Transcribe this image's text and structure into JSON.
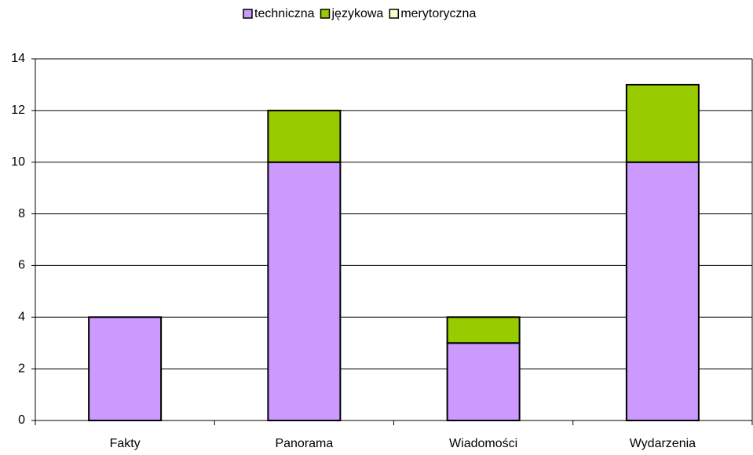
{
  "chart_data": {
    "type": "stacked_bar",
    "categories": [
      "Fakty",
      "Panorama",
      "Wiadomości",
      "Wydarzenia"
    ],
    "series": [
      {
        "name": "techniczna",
        "color": "#cc99ff",
        "values": [
          4,
          10,
          3,
          10
        ]
      },
      {
        "name": "językowa",
        "color": "#99cc00",
        "values": [
          0,
          2,
          1,
          3
        ]
      },
      {
        "name": "merytoryczna",
        "color": "#ffffcc",
        "values": [
          0,
          0,
          0,
          0
        ]
      }
    ],
    "ylim": [
      0,
      14
    ],
    "yticks": [
      0,
      2,
      4,
      6,
      8,
      10,
      12,
      14
    ],
    "grid": true,
    "legend": "top"
  }
}
